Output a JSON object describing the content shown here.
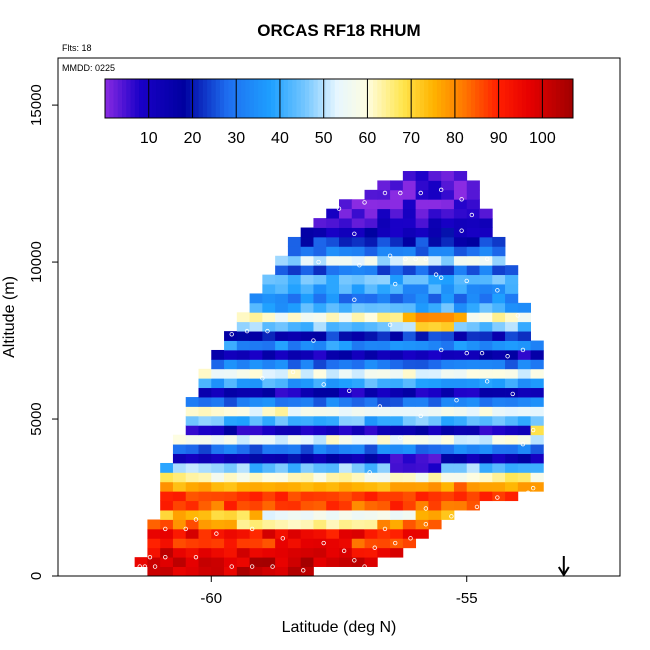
{
  "chart_data": {
    "type": "heatmap",
    "title": "ORCAS RF18 RHUM",
    "xlabel": "Latitude (deg N)",
    "ylabel": "Altitude (m)",
    "xlim": [
      -63.0,
      -52.0
    ],
    "ylim": [
      0,
      16500
    ],
    "x_ticks": [
      -60,
      -55
    ],
    "x_tick_labels": [
      "-60",
      "-55"
    ],
    "y_ticks": [
      0,
      5000,
      10000,
      15000
    ],
    "y_tick_labels": [
      "0",
      "5000",
      "10000",
      "15000"
    ],
    "annotations": {
      "flights": "Flts: 18",
      "mmdd": "MMDD: 0225"
    },
    "colorbar": {
      "range": [
        0,
        107
      ],
      "ticks": [
        10,
        20,
        30,
        40,
        50,
        60,
        70,
        80,
        90,
        100
      ],
      "tick_labels": [
        "10",
        "20",
        "30",
        "40",
        "50",
        "60",
        "70",
        "80",
        "90",
        "100"
      ],
      "stops": [
        {
          "value": 0,
          "color": "#8a2be2"
        },
        {
          "value": 8,
          "color": "#1a00c8"
        },
        {
          "value": 18,
          "color": "#0000a0"
        },
        {
          "value": 28,
          "color": "#1e6ef0"
        },
        {
          "value": 38,
          "color": "#1ea0ff"
        },
        {
          "value": 46,
          "color": "#78c8ff"
        },
        {
          "value": 53,
          "color": "#e6f6ff"
        },
        {
          "value": 60,
          "color": "#fffde0"
        },
        {
          "value": 68,
          "color": "#ffe650"
        },
        {
          "value": 75,
          "color": "#ffb400"
        },
        {
          "value": 82,
          "color": "#ff7800"
        },
        {
          "value": 90,
          "color": "#ff1e00"
        },
        {
          "value": 97,
          "color": "#e60000"
        },
        {
          "value": 107,
          "color": "#a00000"
        }
      ]
    },
    "grid": {
      "lat_step": 0.25,
      "alt_step": 300,
      "envelope": [
        {
          "alt": 0,
          "lat_min": -61.2,
          "lat_max": -58.2
        },
        {
          "alt": 300,
          "lat_min": -61.3,
          "lat_max": -56.8
        },
        {
          "alt": 900,
          "lat_min": -61.2,
          "lat_max": -56.1
        },
        {
          "alt": 1800,
          "lat_min": -61.0,
          "lat_max": -55.4
        },
        {
          "alt": 2700,
          "lat_min": -60.8,
          "lat_max": -53.5
        },
        {
          "alt": 3300,
          "lat_min": -60.8,
          "lat_max": -53.5
        },
        {
          "alt": 4800,
          "lat_min": -60.4,
          "lat_max": -53.5
        },
        {
          "alt": 6600,
          "lat_min": -60.0,
          "lat_max": -53.5
        },
        {
          "alt": 7500,
          "lat_min": -59.6,
          "lat_max": -53.8
        },
        {
          "alt": 9000,
          "lat_min": -59.0,
          "lat_max": -54.1
        },
        {
          "alt": 10500,
          "lat_min": -58.3,
          "lat_max": -54.4
        },
        {
          "alt": 11700,
          "lat_min": -57.4,
          "lat_max": -54.8
        },
        {
          "alt": 12600,
          "lat_min": -56.2,
          "lat_max": -55.0
        }
      ],
      "profile": [
        {
          "alt": 0,
          "rh": 101
        },
        {
          "alt": 600,
          "rh": 97
        },
        {
          "alt": 900,
          "rh": 88
        },
        {
          "alt": 1200,
          "rh": 94
        },
        {
          "alt": 1500,
          "rh": 82
        },
        {
          "alt": 1800,
          "rh": 72
        },
        {
          "alt": 2100,
          "rh": 85
        },
        {
          "alt": 2400,
          "rh": 92
        },
        {
          "alt": 2700,
          "rh": 80
        },
        {
          "alt": 3000,
          "rh": 62
        },
        {
          "alt": 3300,
          "rh": 45
        },
        {
          "alt": 3600,
          "rh": 15
        },
        {
          "alt": 3900,
          "rh": 30
        },
        {
          "alt": 4200,
          "rh": 56
        },
        {
          "alt": 4500,
          "rh": 12
        },
        {
          "alt": 4800,
          "rh": 42
        },
        {
          "alt": 5100,
          "rh": 58
        },
        {
          "alt": 5400,
          "rh": 30
        },
        {
          "alt": 5700,
          "rh": 12
        },
        {
          "alt": 6000,
          "rh": 40
        },
        {
          "alt": 6300,
          "rh": 56
        },
        {
          "alt": 6600,
          "rh": 30
        },
        {
          "alt": 6900,
          "rh": 12
        },
        {
          "alt": 7200,
          "rh": 35
        },
        {
          "alt": 7500,
          "rh": 20
        },
        {
          "alt": 7800,
          "rh": 45
        },
        {
          "alt": 8100,
          "rh": 60
        },
        {
          "alt": 8400,
          "rh": 40
        },
        {
          "alt": 8700,
          "rh": 32
        },
        {
          "alt": 9000,
          "rh": 38
        },
        {
          "alt": 9300,
          "rh": 42
        },
        {
          "alt": 9600,
          "rh": 28
        },
        {
          "alt": 9900,
          "rh": 52
        },
        {
          "alt": 10200,
          "rh": 30
        },
        {
          "alt": 10500,
          "rh": 22
        },
        {
          "alt": 10800,
          "rh": 14
        },
        {
          "alt": 11100,
          "rh": 8
        },
        {
          "alt": 11400,
          "rh": 4
        },
        {
          "alt": 12600,
          "rh": 2
        }
      ],
      "features": [
        {
          "alt": 8100,
          "lat_min": -56.4,
          "lat_max": -55.2,
          "rh": 78
        },
        {
          "alt": 7800,
          "lat_min": -56.0,
          "lat_max": -55.3,
          "rh": 72
        },
        {
          "alt": 4500,
          "lat_min": -53.9,
          "lat_max": -53.5,
          "rh": 68
        },
        {
          "alt": 3300,
          "lat_min": -56.6,
          "lat_max": -55.6,
          "rh": 8
        },
        {
          "alt": 3600,
          "lat_min": -56.5,
          "lat_max": -55.6,
          "rh": 5
        },
        {
          "alt": 2700,
          "lat_min": -60.8,
          "lat_max": -55.8,
          "rh": 75
        },
        {
          "alt": 2400,
          "lat_min": -60.8,
          "lat_max": -53.5,
          "rh": 88
        },
        {
          "alt": 1800,
          "lat_min": -59.0,
          "lat_max": -56.2,
          "rh": 55
        },
        {
          "alt": 1500,
          "lat_min": -59.5,
          "lat_max": -57.0,
          "rh": 64
        },
        {
          "alt": 900,
          "lat_min": -58.8,
          "lat_max": -57.5,
          "rh": 95
        },
        {
          "alt": 600,
          "lat_min": -59.0,
          "lat_max": -57.4,
          "rh": 99
        }
      ]
    },
    "flight_points": [
      [
        -61.4,
        300
      ],
      [
        -61.3,
        300
      ],
      [
        -61.1,
        300
      ],
      [
        -61.2,
        600
      ],
      [
        -60.9,
        600
      ],
      [
        -60.3,
        600
      ],
      [
        -59.6,
        300
      ],
      [
        -59.2,
        300
      ],
      [
        -58.8,
        300
      ],
      [
        -58.2,
        180
      ],
      [
        -57.6,
        180
      ],
      [
        -57.0,
        300
      ],
      [
        -57.2,
        500
      ],
      [
        -56.8,
        900
      ],
      [
        -56.4,
        1050
      ],
      [
        -56.1,
        1200
      ],
      [
        -56.6,
        1500
      ],
      [
        -55.8,
        1650
      ],
      [
        -55.3,
        1900
      ],
      [
        -54.8,
        2200
      ],
      [
        -54.4,
        2500
      ],
      [
        -53.7,
        2800
      ],
      [
        -61.1,
        2750
      ],
      [
        -61.2,
        2150
      ],
      [
        -60.9,
        1500
      ],
      [
        -60.5,
        1500
      ],
      [
        -60.3,
        1800
      ],
      [
        -59.9,
        1350
      ],
      [
        -59.2,
        1500
      ],
      [
        -58.6,
        1200
      ],
      [
        -57.8,
        1050
      ],
      [
        -57.4,
        800
      ],
      [
        -56.9,
        3300
      ],
      [
        -56.3,
        4400
      ],
      [
        -55.8,
        2150
      ],
      [
        -53.9,
        4200
      ],
      [
        -53.7,
        4650
      ],
      [
        -54.1,
        5800
      ],
      [
        -54.6,
        6200
      ],
      [
        -55.2,
        5600
      ],
      [
        -55.9,
        5100
      ],
      [
        -56.7,
        5400
      ],
      [
        -57.3,
        5900
      ],
      [
        -57.8,
        6100
      ],
      [
        -58.4,
        6500
      ],
      [
        -59.0,
        6300
      ],
      [
        -59.8,
        7300
      ],
      [
        -59.6,
        7700
      ],
      [
        -59.3,
        7800
      ],
      [
        -58.9,
        7800
      ],
      [
        -58.0,
        7500
      ],
      [
        -57.2,
        8800
      ],
      [
        -56.5,
        8000
      ],
      [
        -55.5,
        7200
      ],
      [
        -55.0,
        7100
      ],
      [
        -54.7,
        7100
      ],
      [
        -54.2,
        7000
      ],
      [
        -53.9,
        7200
      ],
      [
        -54.0,
        8300
      ],
      [
        -54.4,
        9100
      ],
      [
        -55.0,
        9400
      ],
      [
        -55.5,
        9500
      ],
      [
        -56.4,
        9300
      ],
      [
        -57.1,
        9900
      ],
      [
        -57.9,
        10000
      ],
      [
        -57.2,
        10900
      ],
      [
        -56.5,
        10200
      ],
      [
        -56.2,
        10100
      ],
      [
        -56.0,
        10100
      ],
      [
        -55.8,
        10100
      ],
      [
        -55.6,
        9600
      ],
      [
        -54.6,
        10100
      ],
      [
        -55.1,
        11000
      ],
      [
        -54.9,
        11500
      ],
      [
        -55.1,
        12000
      ],
      [
        -55.5,
        12300
      ],
      [
        -55.9,
        12200
      ],
      [
        -56.3,
        12200
      ],
      [
        -56.6,
        12200
      ],
      [
        -57.0,
        11900
      ],
      [
        -57.5,
        11700
      ],
      [
        -53.8,
        2650
      ]
    ],
    "arrow": {
      "lat": -53.1
    }
  }
}
